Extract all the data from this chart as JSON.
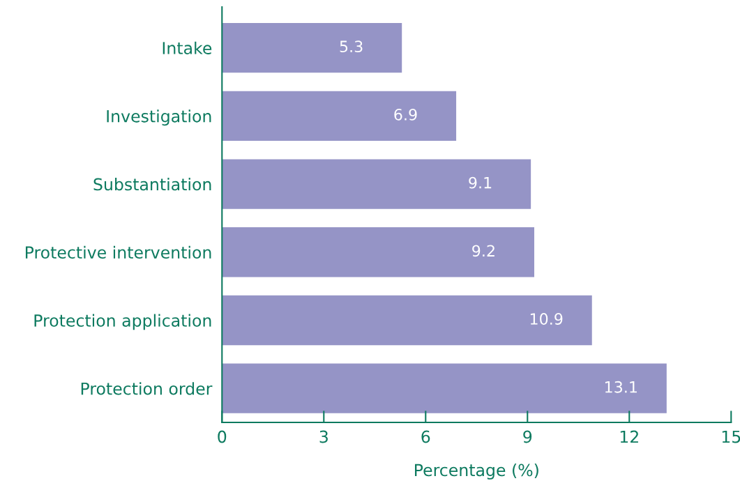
{
  "chart_data": {
    "type": "bar",
    "orientation": "horizontal",
    "xlabel": "Percentage (%)",
    "categories": [
      "Intake",
      "Investigation",
      "Substantiation",
      "Protective intervention",
      "Protection application",
      "Protection order"
    ],
    "values": [
      5.3,
      6.9,
      9.1,
      9.2,
      10.9,
      13.1
    ],
    "color": "#9594c6",
    "data_labels": true,
    "xlim": [
      0,
      15
    ],
    "xticks": [
      0,
      3,
      6,
      9,
      12,
      15
    ],
    "grid": false,
    "legend": false
  }
}
